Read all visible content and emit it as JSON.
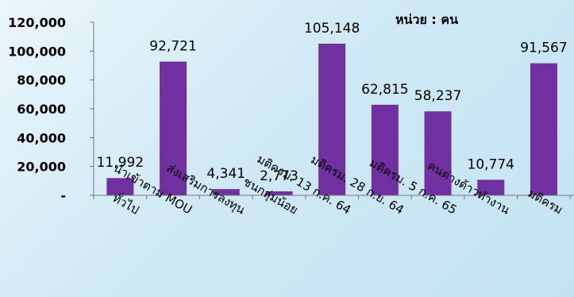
{
  "chart_data": {
    "type": "bar",
    "unit_label": "หน่วย : คน",
    "categories": [
      "ทั่วไป",
      "นำเข้าตาม MOU",
      "ส่งเสริมการลงทุน",
      "ชนกลุ่มน้อย",
      "มติครม. 13 ก.ค. 64",
      "มติครม. 28 ก.ย. 64",
      "มติครม. 5 ก.ค. 65",
      "คนต่างด้าวทำงาน",
      "มติครม"
    ],
    "values": [
      11992,
      92721,
      4341,
      2773,
      105148,
      62815,
      58237,
      10774,
      91567
    ],
    "value_labels": [
      "11,992",
      "92,721",
      "4,341",
      "2,773",
      "105,148",
      "62,815",
      "58,237",
      "10,774",
      "91,567"
    ],
    "y_ticks": [
      0,
      20000,
      40000,
      60000,
      80000,
      100000,
      120000
    ],
    "y_tick_labels": [
      "-",
      "20,000",
      "40,000",
      "60,000",
      "80,000",
      "100,000",
      "120,000"
    ],
    "ylim": [
      0,
      120000
    ],
    "grid": false,
    "bar_color": "#7030a0"
  }
}
